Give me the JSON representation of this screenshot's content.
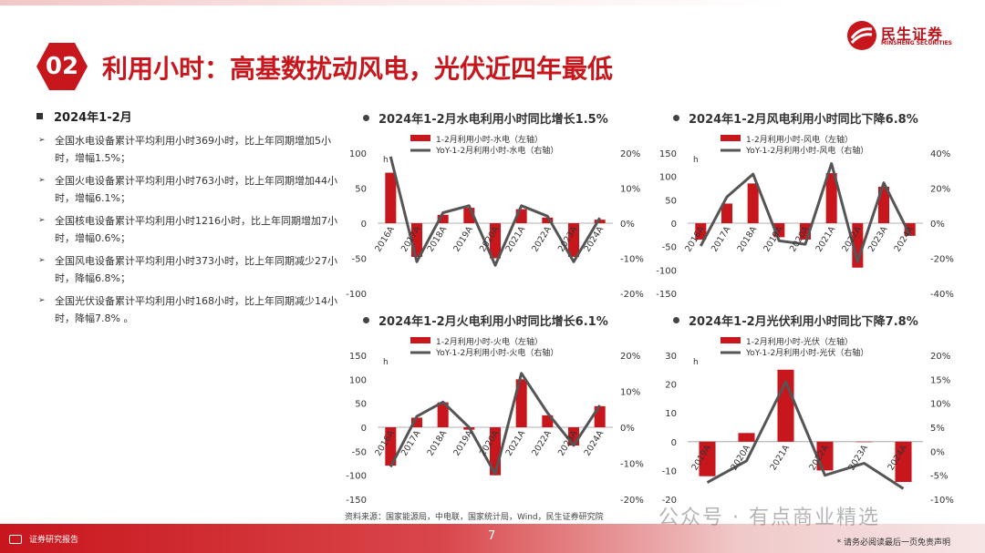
{
  "header": {
    "badge": "02",
    "title": "利用小时：高基数扰动风电，光伏近四年最低"
  },
  "logo": {
    "cn": "民生证券",
    "en": "MINSHENG SECURITIES"
  },
  "left": {
    "heading": "2024年1-2月",
    "bullets": [
      "全国水电设备累计平均利用小时369小时，比上年同期增加5小时，增幅1.5%；",
      "全国火电设备累计平均利用小时763小时，比上年同期增加44小时，增幅6.1%；",
      "全国核电设备累计平均利用小时1216小时，比上年同期增加7小时，增幅0.6%；",
      "全国风电设备累计平均利用小时373小时，比上年同期减少27小时，降幅6.8%；",
      "全国光伏设备累计平均利用小时168小时，比上年同期减少14小时，降幅7.8% 。"
    ]
  },
  "colors": {
    "accent": "#c8161d",
    "line": "#555555"
  },
  "chart_data": [
    {
      "id": "hydro",
      "type": "bar+line",
      "title": "2024年1-2月水电利用小时同比增长1.5%",
      "legend": [
        "1-2月利用小时-水电（左轴）",
        "YoY-1-2月利用小时-水电（右轴）"
      ],
      "unit": "h",
      "categories": [
        "2016A",
        "2017A",
        "2018A",
        "2019A",
        "2020A",
        "2021A",
        "2022A",
        "2023A",
        "2024A"
      ],
      "bar_values": [
        72,
        -48,
        12,
        22,
        -50,
        20,
        8,
        -48,
        5
      ],
      "line_values": [
        0.19,
        -0.11,
        0.03,
        0.05,
        -0.12,
        0.05,
        0.02,
        -0.11,
        0.015
      ],
      "ylim_left": [
        -100,
        100
      ],
      "yticks_left": [
        100,
        50,
        0,
        -50,
        -100
      ],
      "ylim_right": [
        -0.2,
        0.2
      ],
      "yticks_right": [
        0.2,
        0.1,
        0,
        -0.1,
        -0.2
      ],
      "right_labels": [
        "20%",
        "10%",
        "0%",
        "-10%",
        "-20%"
      ]
    },
    {
      "id": "wind",
      "type": "bar+line",
      "title": "2024年1-2月风电利用小时同比下降6.8%",
      "legend": [
        "1-2月利用小时-风电（左轴）",
        "YoY-1-2月利用小时-风电（右轴）"
      ],
      "unit": "h",
      "categories": [
        "2016A",
        "2017A",
        "2018A",
        "2019A",
        "2020A",
        "2021A",
        "2022A",
        "2023A",
        "2024A"
      ],
      "bar_values": [
        -35,
        42,
        85,
        -30,
        -35,
        107,
        -95,
        78,
        -27
      ],
      "line_values": [
        -0.13,
        0.15,
        0.28,
        -0.1,
        -0.12,
        0.34,
        -0.22,
        0.23,
        -0.068
      ],
      "ylim_left": [
        -150,
        150
      ],
      "yticks_left": [
        150,
        100,
        50,
        0,
        -50,
        -100,
        -150
      ],
      "ylim_right": [
        -0.4,
        0.4
      ],
      "yticks_right": [
        0.4,
        0.2,
        0,
        -0.2,
        -0.4
      ],
      "right_labels": [
        "40%",
        "20%",
        "0%",
        "-20%",
        "-40%"
      ]
    },
    {
      "id": "thermal",
      "type": "bar+line",
      "title": "2024年1-2月火电利用小时同比增长6.1%",
      "legend": [
        "1-2月利用小时-火电（左轴）",
        "YoY-1-2月利用小时-火电（右轴）"
      ],
      "unit": "h",
      "categories": [
        "2016A",
        "2017A",
        "2018A",
        "2019A",
        "2020A",
        "2021A",
        "2022A",
        "2023A",
        "2024A"
      ],
      "bar_values": [
        -80,
        20,
        52,
        -5,
        -100,
        100,
        25,
        -38,
        44
      ],
      "line_values": [
        -0.11,
        0.03,
        0.07,
        0.0,
        -0.13,
        0.15,
        0.04,
        -0.05,
        0.061
      ],
      "ylim_left": [
        -150,
        150
      ],
      "yticks_left": [
        150,
        100,
        50,
        0,
        -50,
        -100,
        -150
      ],
      "ylim_right": [
        -0.2,
        0.2
      ],
      "yticks_right": [
        0.2,
        0.1,
        0,
        -0.1,
        -0.2
      ],
      "right_labels": [
        "20%",
        "10%",
        "0%",
        "-10%",
        "-20%"
      ]
    },
    {
      "id": "solar",
      "type": "bar+line",
      "title": "2024年1-2月光伏利用小时同比下降7.8%",
      "legend": [
        "1-2月利用小时-光伏（左轴）",
        "YoY-1-2月利用小时-光伏（右轴）"
      ],
      "unit": "h",
      "categories": [
        "2019A",
        "2020A",
        "2021A",
        "2022A",
        "2023A",
        "2024A"
      ],
      "bar_values": [
        -12,
        3,
        25,
        -10,
        0,
        -14
      ],
      "line_values": [
        -0.065,
        -0.02,
        0.145,
        -0.05,
        -0.025,
        -0.078
      ],
      "ylim_left": [
        -20,
        30
      ],
      "yticks_left": [
        30,
        20,
        10,
        0,
        -10,
        -20
      ],
      "ylim_right": [
        -0.1,
        0.2
      ],
      "yticks_right": [
        0.2,
        0.15,
        0.1,
        0.05,
        0,
        -0.05,
        -0.1
      ],
      "right_labels": [
        "20%",
        "15%",
        "10%",
        "5%",
        "0%",
        "-5%",
        "-10%"
      ]
    }
  ],
  "source": "资料来源：国家能源局，中电联，国家统计局，Wind，民生证券研究院",
  "footer": {
    "left": "证券研究报告",
    "page": "7",
    "right": "* 请务必阅读最后一页免责声明"
  },
  "watermark": "公众号 · 有点商业精选"
}
